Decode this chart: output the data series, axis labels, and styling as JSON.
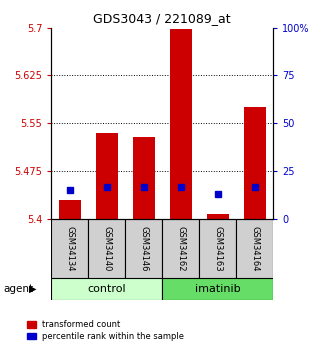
{
  "title": "GDS3043 / 221089_at",
  "samples": [
    "GSM34134",
    "GSM34140",
    "GSM34146",
    "GSM34162",
    "GSM34163",
    "GSM34164"
  ],
  "groups": [
    "control",
    "control",
    "control",
    "imatinib",
    "imatinib",
    "imatinib"
  ],
  "red_values": [
    5.43,
    5.535,
    5.528,
    5.698,
    5.408,
    5.575
  ],
  "blue_percentiles": [
    15,
    17,
    17,
    17,
    13,
    17
  ],
  "ymin": 5.4,
  "ymax": 5.7,
  "yticks_left": [
    5.4,
    5.475,
    5.55,
    5.625,
    5.7
  ],
  "ytick_labels_left": [
    "5.4",
    "5.475",
    "5.55",
    "5.625",
    "5.7"
  ],
  "yticks_right": [
    0,
    25,
    50,
    75,
    100
  ],
  "ytick_labels_right": [
    "0",
    "25",
    "50",
    "75",
    "100%"
  ],
  "bar_color": "#cc0000",
  "blue_color": "#0000cc",
  "control_color": "#ccffcc",
  "imatinib_color": "#66dd66",
  "left_axis_color": "#cc0000",
  "right_axis_color": "#0000cc",
  "bar_width": 0.6,
  "agent_label": "agent",
  "tick_fontsize": 7,
  "sample_fontsize": 6,
  "group_fontsize": 8,
  "title_fontsize": 9,
  "legend_fontsize": 6
}
